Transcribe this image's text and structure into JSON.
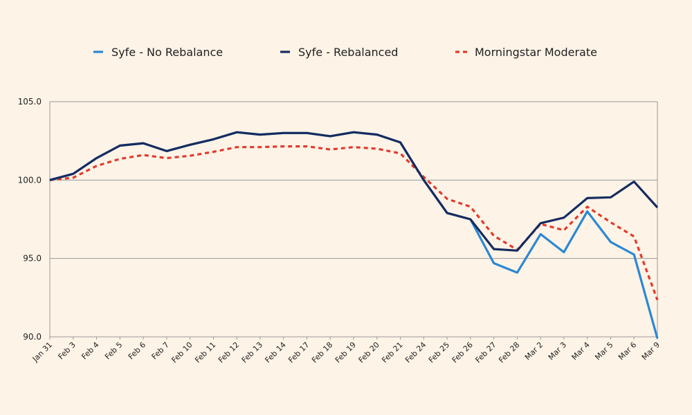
{
  "chart_data": {
    "type": "line",
    "title": "",
    "xlabel": "",
    "ylabel": "",
    "categories": [
      "Jan 31",
      "Feb 3",
      "Feb 4",
      "Feb 5",
      "Feb 6",
      "Feb 7",
      "Feb 10",
      "Feb 11",
      "Feb 12",
      "Feb 13",
      "Feb 14",
      "Feb 17",
      "Feb 18",
      "Feb 19",
      "Feb 20",
      "Feb 21",
      "Feb 24",
      "Feb 25",
      "Feb 26",
      "Feb 27",
      "Feb 28",
      "Mar 2",
      "Mar 3",
      "Mar 4",
      "Mar 5",
      "Mar 6",
      "Mar 9"
    ],
    "ylim": [
      90,
      105
    ],
    "yticks": [
      90,
      95,
      100,
      105
    ],
    "ytick_labels": [
      "90.0",
      "95.0",
      "100.0",
      "105.0"
    ],
    "grid": "horizontal",
    "legend_position": "top",
    "series": [
      {
        "name": "Syfe - No Rebalance",
        "color": "#2b87d3",
        "style": "solid",
        "values": [
          100.0,
          100.4,
          101.4,
          102.2,
          102.35,
          101.85,
          102.25,
          102.6,
          103.05,
          102.9,
          103.0,
          103.0,
          102.8,
          103.05,
          102.9,
          102.4,
          100.0,
          97.9,
          97.5,
          94.7,
          94.1,
          96.55,
          95.4,
          98.0,
          96.05,
          95.25,
          89.9
        ]
      },
      {
        "name": "Syfe - Rebalanced",
        "color": "#162c5e",
        "style": "solid",
        "values": [
          100.0,
          100.4,
          101.4,
          102.2,
          102.35,
          101.85,
          102.25,
          102.6,
          103.05,
          102.9,
          103.0,
          103.0,
          102.8,
          103.05,
          102.9,
          102.4,
          100.0,
          97.9,
          97.5,
          95.6,
          95.5,
          97.25,
          97.6,
          98.85,
          98.9,
          99.9,
          98.25
        ]
      },
      {
        "name": "Morningstar Moderate",
        "color": "#e23a2c",
        "style": "dotted",
        "values": [
          100.0,
          100.15,
          100.9,
          101.35,
          101.6,
          101.4,
          101.55,
          101.8,
          102.1,
          102.1,
          102.15,
          102.15,
          101.95,
          102.1,
          102.0,
          101.7,
          100.2,
          98.8,
          98.3,
          96.45,
          95.55,
          97.2,
          96.8,
          98.3,
          97.3,
          96.4,
          92.35
        ]
      }
    ]
  }
}
